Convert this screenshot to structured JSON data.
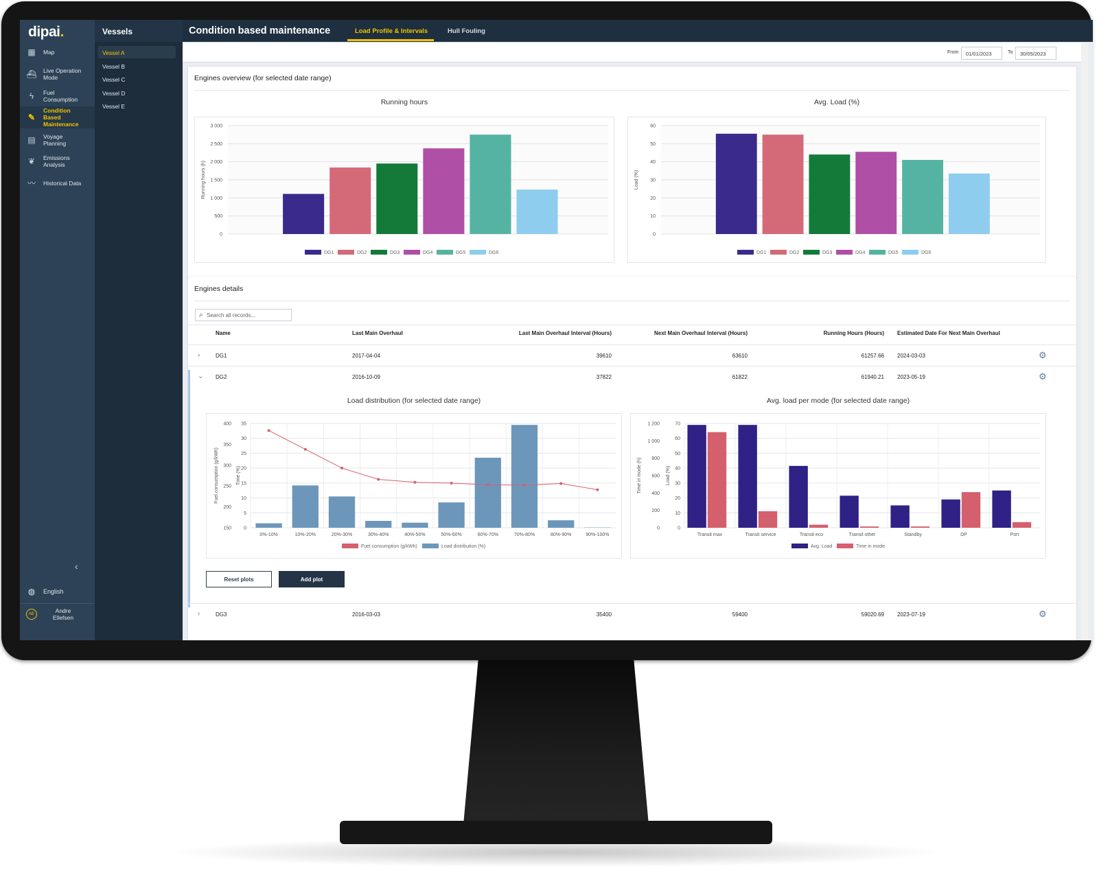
{
  "app": {
    "logo": "dipai",
    "logo_dot": "."
  },
  "sidebar": {
    "items": [
      {
        "label": "Map",
        "icon": "map-icon",
        "glyph": "▦"
      },
      {
        "label": "Live Operation Mode",
        "icon": "ship-icon",
        "glyph": "⛴"
      },
      {
        "label": "Fuel Consumption",
        "icon": "lightning-icon",
        "glyph": "ϟ"
      },
      {
        "label": "Condition Based Maintenance",
        "icon": "wrench-icon",
        "glyph": "🔧"
      },
      {
        "label": "Voyage Planning",
        "icon": "clipboard-icon",
        "glyph": "▤"
      },
      {
        "label": "Emissions Analysis",
        "icon": "leaf-icon",
        "glyph": "❦"
      },
      {
        "label": "Historical Data",
        "icon": "trend-icon",
        "glyph": "〰"
      }
    ],
    "language": "English",
    "user": {
      "initials": "AE",
      "name": "Andre Ellefsen"
    }
  },
  "vessels": {
    "title": "Vessels",
    "items": [
      "Vessel A",
      "Vessel B",
      "Vessel C",
      "Vessel D",
      "Vessel E"
    ],
    "selected": "Vessel A"
  },
  "header": {
    "title": "Condition based maintenance",
    "tabs": [
      {
        "label": "Load Profile & Intervals",
        "active": true
      },
      {
        "label": "Hull Fouling",
        "active": false
      }
    ]
  },
  "daterange": {
    "from_label": "From",
    "from": "01/01/2023",
    "to_label": "To",
    "to": "30/05/2023"
  },
  "overview": {
    "title": "Engines overview (for selected date range)",
    "running_hours_title": "Running hours",
    "avg_load_title": "Avg. Load (%)"
  },
  "details": {
    "title": "Engines details",
    "search_placeholder": "Search all records...",
    "columns": [
      "Name",
      "Last Main Overhaul",
      "Last Main Overhaul Interval (Hours)",
      "Next Main Overhaul Interval (Hours)",
      "Running Hours (Hours)",
      "Estimated Date For Next Main Overhaul"
    ],
    "rows": [
      {
        "name": "DG1",
        "last_overhaul": "2017-04-04",
        "last_interval": "39610",
        "next_interval": "63610",
        "running_hours": "61257.66",
        "est_date": "2024-03-03"
      },
      {
        "name": "DG2",
        "last_overhaul": "2016-10-09",
        "last_interval": "37822",
        "next_interval": "61822",
        "running_hours": "61940.21",
        "est_date": "2023-05-19"
      },
      {
        "name": "DG3",
        "last_overhaul": "2016-03-03",
        "last_interval": "35400",
        "next_interval": "59400",
        "running_hours": "59020.69",
        "est_date": "2023-07-19"
      }
    ],
    "load_dist_title": "Load distribution (for selected date range)",
    "avg_mode_title": "Avg. load per mode (for selected date range)",
    "reset_label": "Reset plots",
    "add_label": "Add plot"
  },
  "colors": {
    "accent": "#f2c200",
    "sidebar": "#2d4256",
    "dark": "#1e2f3f"
  },
  "chart_data": [
    {
      "type": "bar",
      "title": "Running hours",
      "ylabel": "Running hours (h)",
      "ylim": [
        0,
        3000
      ],
      "yticks": [
        "0",
        "500",
        "1 000",
        "1 500",
        "2 000",
        "2 500",
        "3 000"
      ],
      "categories": [
        "DG1",
        "DG2",
        "DG3",
        "DG4",
        "DG5",
        "DG6"
      ],
      "values": [
        1110,
        1840,
        1950,
        2370,
        2750,
        1230
      ],
      "colors": [
        "#3a2a8c",
        "#d46a78",
        "#137a3a",
        "#b04fa6",
        "#55b3a4",
        "#8fcdee"
      ],
      "legend": "bottom"
    },
    {
      "type": "bar",
      "title": "Avg. Load (%)",
      "ylabel": "Load (%)",
      "ylim": [
        0,
        60
      ],
      "yticks": [
        "0",
        "10",
        "20",
        "30",
        "40",
        "50",
        "60"
      ],
      "categories": [
        "DG1",
        "DG2",
        "DG3",
        "DG4",
        "DG5",
        "DG6"
      ],
      "values": [
        55.5,
        55,
        44,
        45.5,
        41,
        33.5
      ],
      "colors": [
        "#3a2a8c",
        "#d46a78",
        "#137a3a",
        "#b04fa6",
        "#55b3a4",
        "#8fcdee"
      ],
      "legend": "bottom"
    },
    {
      "type": "bar",
      "title": "Load distribution (for selected date range)",
      "categories": [
        "0%-10%",
        "10%-20%",
        "20%-30%",
        "30%-40%",
        "40%-50%",
        "50%-60%",
        "60%-70%",
        "70%-80%",
        "80%-90%",
        "90%-100%"
      ],
      "y_left_label": "Fuel consumption (g/kWh)",
      "y_left_ticks": [
        "150",
        "200",
        "250",
        "300",
        "350",
        "400"
      ],
      "y_left_lim": [
        150,
        400
      ],
      "y_right_label": "Time (%)",
      "y_right_ticks": [
        "0",
        "5",
        "10",
        "15",
        "20",
        "25",
        "30",
        "35"
      ],
      "y_right_lim": [
        0,
        35
      ],
      "series": [
        {
          "name": "Fuel consumption (g/kWh)",
          "kind": "line",
          "color": "#d4606e",
          "values": [
            383,
            338,
            293,
            266,
            259,
            257,
            253,
            252,
            256,
            241
          ]
        },
        {
          "name": "Load distribution (%)",
          "kind": "bar",
          "color": "#6c97bb",
          "values": [
            1.5,
            14.2,
            10.5,
            2.3,
            1.7,
            8.5,
            23.5,
            34.5,
            2.5,
            0.1
          ]
        }
      ],
      "legend": "bottom"
    },
    {
      "type": "bar",
      "title": "Avg. load per mode (for selected date range)",
      "categories": [
        "Transit max",
        "Transit service",
        "Transit eco",
        "Transit other",
        "Standby",
        "DP",
        "Port"
      ],
      "y_left_label": "Time in mode (h)",
      "y_left_ticks": [
        "0",
        "200",
        "400",
        "600",
        "800",
        "1 000",
        "1 200"
      ],
      "y_left_lim": [
        0,
        1200
      ],
      "y_right_label": "Load (%)",
      "y_right_ticks": [
        "0",
        "10",
        "20",
        "30",
        "40",
        "50",
        "60",
        "70"
      ],
      "y_right_lim": [
        0,
        70
      ],
      "series": [
        {
          "name": "Avg. Load",
          "color": "#2f2185",
          "values": [
            69,
            69,
            41.5,
            21.5,
            15,
            19,
            25
          ]
        },
        {
          "name": "Time in mode",
          "color": "#d4606e",
          "values": [
            1100,
            190,
            35,
            15,
            15,
            410,
            65
          ]
        }
      ],
      "legend": "bottom"
    }
  ]
}
